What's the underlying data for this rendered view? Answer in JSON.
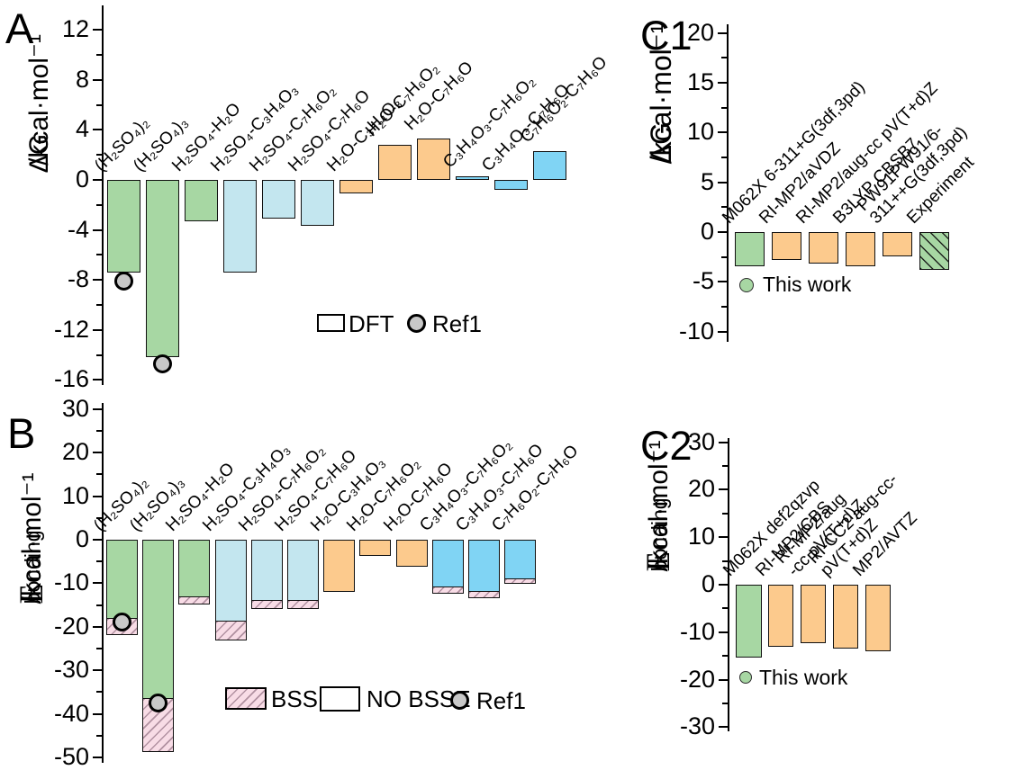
{
  "colors": {
    "green": "#a7d7a3",
    "pale_blue": "#c3e6ef",
    "orange": "#fcca8d",
    "blue": "#80d4f4",
    "pink_hatch_bg": "#f8dce6",
    "ref_gray": "#c8c8c8",
    "bar_border": "#111111",
    "background": "#ffffff"
  },
  "chart_data": [
    {
      "id": "A",
      "type": "bar",
      "label": "A",
      "ylabel": {
        "base": "ΔG",
        "sub": "",
        "rest": " /kcal·mol⁻¹"
      },
      "ylim": [
        -16.4,
        14
      ],
      "yticks": [
        12,
        8,
        4,
        0,
        -4,
        -8,
        -12,
        -16
      ],
      "minor_ticks": [
        10,
        6,
        2,
        -2,
        -6,
        -10,
        -14
      ],
      "grid": false,
      "categories": [
        "(H₂SO₄)₂",
        "(H₂SO₄)₃",
        "H₂SO₄-H₂O",
        "H₂SO₄-C₃H₄O₃",
        "H₂SO₄-C₇H₆O₂",
        "H₂SO₄-C₇H₆O",
        "H₂O-C₃H₄O₃",
        "H₂O-C₇H₆O₂",
        "H₂O-C₇H₆O",
        "C₃H₄O₃-C₇H₆O₂",
        "C₃H₄O₃-C₇H₆O",
        "C₇H₆O₂-C₇H₆O"
      ],
      "series": [
        {
          "name": "DFT",
          "values": [
            -7.4,
            -14.2,
            -3.3,
            -7.4,
            -3.1,
            -3.7,
            -1.1,
            2.8,
            3.3,
            0.3,
            -0.8,
            2.3
          ]
        }
      ],
      "bar_styles": [
        "green",
        "green",
        "green",
        "paleblue",
        "paleblue",
        "paleblue",
        "orange",
        "orange",
        "orange",
        "blue",
        "blue",
        "blue"
      ],
      "ref_points": {
        "name": "Ref1",
        "points": [
          {
            "index": 0,
            "value": -8.1
          },
          {
            "index": 1,
            "value": -14.7
          }
        ]
      },
      "legend": [
        {
          "swatch": "open-box",
          "label": "DFT"
        },
        {
          "swatch": "gray-circle",
          "label": "Ref1"
        }
      ]
    },
    {
      "id": "B",
      "type": "bar",
      "label": "B",
      "ylabel": {
        "base": "E",
        "sub": "bonding",
        "rest": "/kcal·mol⁻¹"
      },
      "ylim": [
        -51.2,
        31.4
      ],
      "yticks": [
        30,
        20,
        10,
        0,
        -10,
        -20,
        -30,
        -40,
        -50
      ],
      "minor_ticks": [
        25,
        15,
        5,
        -5,
        -15,
        -25,
        -35,
        -45
      ],
      "grid": false,
      "categories": [
        "(H₂SO₄)₂",
        "(H₂SO₄)₃",
        "H₂SO₄-H₂O",
        "H₂SO₄-C₃H₄O₃",
        "H₂SO₄-C₇H₆O₂",
        "H₂SO₄-C₇H₆O",
        "H₂O-C₃H₄O₃",
        "H₂O-C₇H₆O₂",
        "H₂O-C₇H₆O",
        "C₃H₄O₃-C₇H₆O₂",
        "C₃H₄O₃-C₇H₆O",
        "C₇H₆O₂-C₇H₆O"
      ],
      "series": [
        {
          "name": "NO BSSE",
          "values": [
            -18.2,
            -36.6,
            -13.3,
            -18.7,
            -14.1,
            -14.1,
            -11.9,
            -3.8,
            -6.2,
            -11.0,
            -12.0,
            -9.1
          ]
        },
        {
          "name": "BSSE total",
          "values": [
            -21.9,
            -48.8,
            -14.9,
            -23.2,
            -15.9,
            -15.9,
            -12.3,
            -3.8,
            -6.2,
            -12.4,
            -13.4,
            -10.1
          ]
        }
      ],
      "bar_styles": [
        "green",
        "green",
        "green",
        "paleblue",
        "paleblue",
        "paleblue",
        "orange",
        "orange",
        "orange",
        "blue",
        "blue",
        "blue"
      ],
      "ref_points": {
        "name": "Ref1",
        "points": [
          {
            "index": 0,
            "value": -19.0
          },
          {
            "index": 1,
            "value": -37.5
          }
        ]
      },
      "legend": [
        {
          "swatch": "pink-hatch-box",
          "label": "BSSE"
        },
        {
          "swatch": "open-box",
          "label": "NO BSSE"
        },
        {
          "swatch": "gray-circle",
          "label": "Ref1"
        }
      ]
    },
    {
      "id": "C1",
      "type": "bar",
      "label": "C1",
      "ylabel": {
        "base": "ΔG",
        "sub": "",
        "rest": "/kcal·mol⁻¹"
      },
      "ylim": [
        -11,
        21
      ],
      "yticks": [
        20,
        15,
        10,
        5,
        0,
        -5,
        -10
      ],
      "minor_ticks": [
        17.5,
        12.5,
        7.5,
        2.5,
        -2.5,
        -7.5
      ],
      "grid": false,
      "categories": [
        "M062X 6-311+G(3df,3pd)",
        "RI-MP2/aVDZ",
        "RI-MP2/aug-cc pV(T+d)Z",
        "B3LYP CBSB7",
        "PW91PW91/6-\n311++G(3df,3pd)",
        "Experiment"
      ],
      "series": [
        {
          "name": "ΔG",
          "values": [
            -3.4,
            -2.8,
            -3.2,
            -3.4,
            -2.4,
            -3.8
          ]
        }
      ],
      "bar_styles": [
        "green",
        "orange",
        "orange",
        "orange",
        "orange",
        "green-hatch"
      ],
      "legend": [
        {
          "swatch": "green-circle",
          "label": "This work"
        }
      ]
    },
    {
      "id": "C2",
      "type": "bar",
      "label": "C2",
      "ylabel": {
        "base": "E",
        "sub": "bonding",
        "rest": "/kcal·mol⁻¹"
      },
      "ylim": [
        -30.9,
        30.9
      ],
      "yticks": [
        30,
        20,
        10,
        0,
        -10,
        -20,
        -30
      ],
      "minor_ticks": [
        25,
        15,
        5,
        -5,
        -15,
        -25
      ],
      "grid": false,
      "categories": [
        "M062X def2qzvp",
        "RI-MP2/CBS",
        "RI-MP2/aug\n-cc pV(T+d)Z",
        "RI-CC2 aug-cc-\npV(T+d)Z",
        "MP2/AVTZ"
      ],
      "series": [
        {
          "name": "E_bonding",
          "values": [
            -15.3,
            -13.0,
            -12.3,
            -13.4,
            -14.0
          ]
        }
      ],
      "bar_styles": [
        "green",
        "orange",
        "orange",
        "orange",
        "orange"
      ],
      "legend": [
        {
          "swatch": "green-circle",
          "label": "This work"
        }
      ]
    }
  ]
}
